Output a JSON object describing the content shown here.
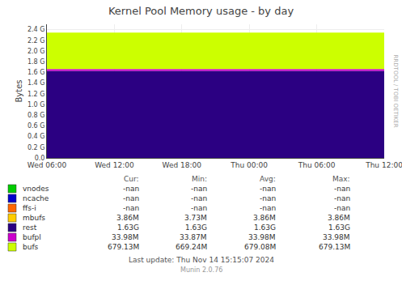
{
  "chart_data": {
    "type": "area",
    "title": "Kernel Pool Memory usage - by day",
    "ylabel": "Bytes",
    "stacked": true,
    "grid": true,
    "categories": [
      "Wed 06:00",
      "Wed 12:00",
      "Wed 18:00",
      "Thu 00:00",
      "Thu 06:00",
      "Thu 12:00"
    ],
    "series": [
      {
        "name": "rest",
        "color": "#2b0082",
        "values": [
          1.63,
          1.63,
          1.63,
          1.63,
          1.63,
          1.63
        ]
      },
      {
        "name": "bufpl",
        "color": "#cc00cc",
        "values": [
          0.03398,
          0.03398,
          0.03398,
          0.03398,
          0.03398,
          0.03398
        ]
      },
      {
        "name": "bufs",
        "color": "#ccff00",
        "values": [
          0.6791,
          0.6791,
          0.6791,
          0.6791,
          0.6791,
          0.6791
        ]
      }
    ],
    "ylim": [
      0,
      2.5
    ],
    "yticks": [
      {
        "value": 0.0,
        "label": "0.0"
      },
      {
        "value": 0.2,
        "label": "0.2 G"
      },
      {
        "value": 0.4,
        "label": "0.4 G"
      },
      {
        "value": 0.6,
        "label": "0.6 G"
      },
      {
        "value": 0.8,
        "label": "0.8 G"
      },
      {
        "value": 1.0,
        "label": "1.0 G"
      },
      {
        "value": 1.2,
        "label": "1.2 G"
      },
      {
        "value": 1.4,
        "label": "1.4 G"
      },
      {
        "value": 1.6,
        "label": "1.6 G"
      },
      {
        "value": 1.8,
        "label": "1.8 G"
      },
      {
        "value": 2.0,
        "label": "2.0 G"
      },
      {
        "value": 2.2,
        "label": "2.2 G"
      },
      {
        "value": 2.4,
        "label": "2.4 G"
      }
    ],
    "legend_table": {
      "headers": [
        "Cur:",
        "Min:",
        "Avg:",
        "Max:"
      ],
      "rows": [
        {
          "label": "vnodes",
          "color": "#00cc00",
          "cells": [
            "-nan",
            "-nan",
            "-nan",
            "-nan"
          ]
        },
        {
          "label": "ncache",
          "color": "#0000cc",
          "cells": [
            "-nan",
            "-nan",
            "-nan",
            "-nan"
          ]
        },
        {
          "label": "ffs-i",
          "color": "#ff6600",
          "cells": [
            "-nan",
            "-nan",
            "-nan",
            "-nan"
          ]
        },
        {
          "label": "mbufs",
          "color": "#ffcc00",
          "cells": [
            "3.86M",
            "3.73M",
            "3.86M",
            "3.86M"
          ]
        },
        {
          "label": "rest",
          "color": "#2b0082",
          "cells": [
            "1.63G",
            "1.63G",
            "1.63G",
            "1.63G"
          ]
        },
        {
          "label": "bufpl",
          "color": "#cc00cc",
          "cells": [
            "33.98M",
            "33.87M",
            "33.98M",
            "33.98M"
          ]
        },
        {
          "label": "bufs",
          "color": "#ccff00",
          "cells": [
            "679.13M",
            "669.24M",
            "679.08M",
            "679.13M"
          ]
        }
      ]
    },
    "watermark": "RRDTOOL / TOBI OETIKER",
    "footnotes": [
      "Last update: Thu Nov 14 15:15:07 2024",
      "Munin 2.0.76"
    ]
  }
}
